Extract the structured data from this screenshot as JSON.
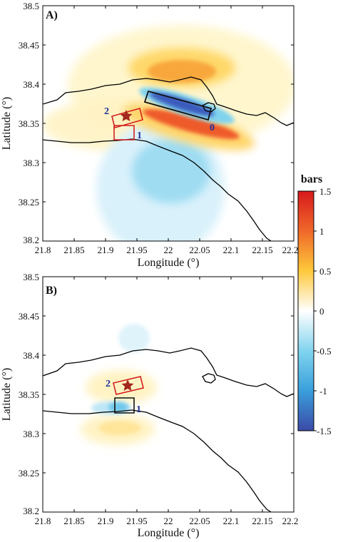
{
  "colorbar": {
    "title": "bars",
    "ticks": [
      "1.5",
      "1",
      "0.5",
      "0",
      "-0.5",
      "-1",
      "-1.5"
    ],
    "range": [
      -1.5,
      1.5
    ]
  },
  "panels": [
    {
      "id": "A",
      "label": "A)",
      "xlabel": "Longitude (°)",
      "ylabel": "Latitude (°)",
      "xticks": [
        "21.8",
        "21.85",
        "21.9",
        "21.95",
        "22",
        "22.05",
        "22.1",
        "22.15",
        "22.2"
      ],
      "yticks": [
        "38.5",
        "38.45",
        "38.4",
        "38.35",
        "38.3",
        "38.25",
        "38.2"
      ],
      "fault_labels": [
        {
          "text": "2",
          "color": "#1f2f9a"
        },
        {
          "text": "1",
          "color": "#1f2f9a"
        },
        {
          "text": "0",
          "color": "#1f2f9a"
        }
      ]
    },
    {
      "id": "B",
      "label": "B)",
      "xlabel": "Longitude (°)",
      "ylabel": "Latitude (°)",
      "xticks": [
        "21.8",
        "21.85",
        "21.9",
        "21.95",
        "22",
        "22.05",
        "22.1",
        "22.15",
        "22.2"
      ],
      "yticks": [
        "38.5",
        "38.45",
        "38.4",
        "38.35",
        "38.3",
        "38.25",
        "38.2"
      ],
      "fault_labels": [
        {
          "text": "2",
          "color": "#1f2f9a"
        },
        {
          "text": "1",
          "color": "#1f2f9a"
        }
      ]
    }
  ],
  "colors": {
    "fault_red": "#d42020",
    "fault_black": "#111111",
    "star": "#a3281f",
    "coast": "#000000"
  }
}
